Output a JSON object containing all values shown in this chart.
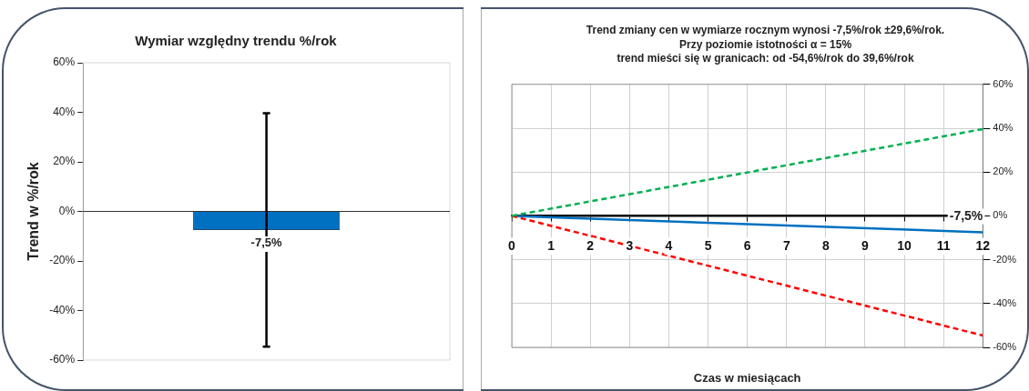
{
  "chart_data": [
    {
      "type": "bar",
      "title": "Wymiar względny trendu %/rok",
      "ylabel": "Trend w %/rok",
      "categories": [
        null
      ],
      "values": [
        -7.5
      ],
      "color": "#0070c0",
      "errors": [
        [
          -54.6,
          39.6
        ]
      ],
      "value_labels": [
        "-7,5%"
      ],
      "ylim": [
        -60,
        60
      ],
      "yticks": [
        {
          "value": -60,
          "label": "-60%"
        },
        {
          "value": -40,
          "label": "-40%"
        },
        {
          "value": -20,
          "label": "-20%"
        },
        {
          "value": 0,
          "label": "0%"
        },
        {
          "value": 20,
          "label": "20%"
        },
        {
          "value": 40,
          "label": "40%"
        },
        {
          "value": 60,
          "label": "60%"
        }
      ],
      "grid": false,
      "legend": false
    },
    {
      "type": "line",
      "title": "Trend zmiany cen w wymiarze rocznym wynosi -7,5%/rok ±29,6%/rok.\nPrzy poziomie istotności α = 15%\ntrend mieści się w granicach: od -54,6%/rok do 39,6%/rok",
      "xlabel": "Czas w miesiącach",
      "x": [
        0,
        12
      ],
      "series": [
        {
          "color": "#00b050",
          "values": [
            0,
            39.6
          ],
          "line_style": "dashed"
        },
        {
          "color": "#ff0000",
          "values": [
            0,
            -54.6
          ],
          "line_style": "dashed"
        },
        {
          "color": "#0070c0",
          "values": [
            0,
            -7.5
          ],
          "line_style": "solid"
        }
      ],
      "annotations": [
        {
          "text": "-7,5%",
          "x": 12,
          "y": -7.5
        }
      ],
      "xlim": [
        0,
        12
      ],
      "xticks": [
        0,
        1,
        2,
        3,
        4,
        5,
        6,
        7,
        8,
        9,
        10,
        11,
        12
      ],
      "ylim": [
        -60,
        60
      ],
      "yticks": [
        {
          "value": -60,
          "label": "-60%"
        },
        {
          "value": -40,
          "label": "-40%"
        },
        {
          "value": -20,
          "label": "-20%"
        },
        {
          "value": 0,
          "label": "0%"
        },
        {
          "value": 20,
          "label": "20%"
        },
        {
          "value": 40,
          "label": "40%"
        },
        {
          "value": 60,
          "label": "60%"
        }
      ],
      "grid": true,
      "legend": false
    }
  ]
}
